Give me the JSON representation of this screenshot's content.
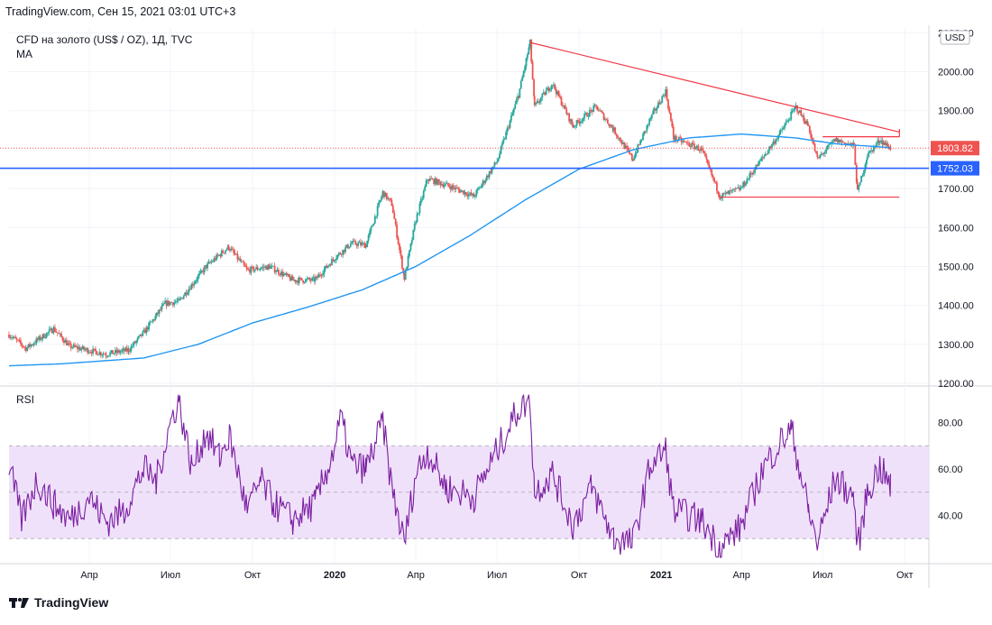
{
  "header": {
    "text": "TradingView.com, Сен 15, 2021 03:01 UTC+3"
  },
  "legend": {
    "symbol": "CFD на золото (US$ / OZ), 1Д, TVC",
    "indicator": "MA"
  },
  "rsi_label": "RSI",
  "footer": {
    "logo_icon": "tradingview-logo-icon",
    "brand": "TradingView"
  },
  "currency_badge": "USD",
  "colors": {
    "up": "#26a69a",
    "down": "#ef5350",
    "ma": "#2196f3",
    "support": "#2962ff",
    "trendline": "#f23645",
    "rsi": "#7b1fa2",
    "rsi_band": "#f0e1fa",
    "last_price_bg": "#ef5350",
    "level_bg": "#2962ff"
  },
  "chart_data": [
    {
      "type": "candlestick",
      "title": "CFD на золото (US$ / OZ), 1Д, TVC",
      "y_ticks": [
        "1200.00",
        "1300.00",
        "1400.00",
        "1500.00",
        "1600.00",
        "1700.00",
        "1800.00",
        "1900.00",
        "2000.00",
        "2100.00"
      ],
      "y_tick_values": [
        1200,
        1300,
        1400,
        1500,
        1600,
        1700,
        1800,
        1900,
        2000,
        2100
      ],
      "ylim": [
        1200,
        2110
      ],
      "x_ticks": [
        "Апр",
        "Июл",
        "Окт",
        "2020",
        "Апр",
        "Июл",
        "Окт",
        "2021",
        "Апр",
        "Июл",
        "Окт"
      ],
      "x_tick_dates": [
        "2019-04-01",
        "2019-07-01",
        "2019-10-01",
        "2020-01-01",
        "2020-04-01",
        "2020-07-01",
        "2020-10-01",
        "2021-01-01",
        "2021-04-01",
        "2021-07-01",
        "2021-10-01"
      ],
      "xlim": [
        "2019-01-01",
        "2021-10-28"
      ],
      "close_path": [
        [
          "2019-01-01",
          1325
        ],
        [
          "2019-01-20",
          1290
        ],
        [
          "2019-02-20",
          1340
        ],
        [
          "2019-03-10",
          1295
        ],
        [
          "2019-04-20",
          1275
        ],
        [
          "2019-05-15",
          1285
        ],
        [
          "2019-06-01",
          1330
        ],
        [
          "2019-06-25",
          1405
        ],
        [
          "2019-07-10",
          1410
        ],
        [
          "2019-08-10",
          1500
        ],
        [
          "2019-09-04",
          1550
        ],
        [
          "2019-09-25",
          1490
        ],
        [
          "2019-10-20",
          1500
        ],
        [
          "2019-11-15",
          1465
        ],
        [
          "2019-12-10",
          1465
        ],
        [
          "2019-12-31",
          1520
        ],
        [
          "2020-01-20",
          1560
        ],
        [
          "2020-02-05",
          1555
        ],
        [
          "2020-02-24",
          1690
        ],
        [
          "2020-03-05",
          1660
        ],
        [
          "2020-03-19",
          1470
        ],
        [
          "2020-04-01",
          1620
        ],
        [
          "2020-04-14",
          1725
        ],
        [
          "2020-05-10",
          1705
        ],
        [
          "2020-06-05",
          1680
        ],
        [
          "2020-07-01",
          1770
        ],
        [
          "2020-07-25",
          1940
        ],
        [
          "2020-08-07",
          2075
        ],
        [
          "2020-08-12",
          1910
        ],
        [
          "2020-09-01",
          1970
        ],
        [
          "2020-09-24",
          1860
        ],
        [
          "2020-10-20",
          1910
        ],
        [
          "2020-11-09",
          1850
        ],
        [
          "2020-11-30",
          1775
        ],
        [
          "2020-12-20",
          1880
        ],
        [
          "2021-01-06",
          1950
        ],
        [
          "2021-01-15",
          1830
        ],
        [
          "2021-02-15",
          1800
        ],
        [
          "2021-03-08",
          1680
        ],
        [
          "2021-03-31",
          1700
        ],
        [
          "2021-04-25",
          1780
        ],
        [
          "2021-05-15",
          1845
        ],
        [
          "2021-06-01",
          1910
        ],
        [
          "2021-06-15",
          1860
        ],
        [
          "2021-06-25",
          1775
        ],
        [
          "2021-07-15",
          1825
        ],
        [
          "2021-08-05",
          1810
        ],
        [
          "2021-08-09",
          1690
        ],
        [
          "2021-08-20",
          1785
        ],
        [
          "2021-09-03",
          1825
        ],
        [
          "2021-09-15",
          1803.82
        ]
      ],
      "ma_path": [
        [
          "2019-01-01",
          1245
        ],
        [
          "2019-03-01",
          1250
        ],
        [
          "2019-06-01",
          1265
        ],
        [
          "2019-08-01",
          1300
        ],
        [
          "2019-10-01",
          1355
        ],
        [
          "2019-12-01",
          1395
        ],
        [
          "2020-02-01",
          1440
        ],
        [
          "2020-04-01",
          1500
        ],
        [
          "2020-06-01",
          1580
        ],
        [
          "2020-08-01",
          1670
        ],
        [
          "2020-10-01",
          1750
        ],
        [
          "2020-12-01",
          1800
        ],
        [
          "2021-02-01",
          1830
        ],
        [
          "2021-04-01",
          1840
        ],
        [
          "2021-06-01",
          1830
        ],
        [
          "2021-07-15",
          1815
        ],
        [
          "2021-09-15",
          1805
        ]
      ],
      "trendline_top": [
        [
          "2020-08-07",
          2075
        ],
        [
          "2021-09-25",
          1845
        ]
      ],
      "channel_box": {
        "x0": "2021-03-08",
        "x1": "2021-09-25",
        "y_low": 1678,
        "y_mid": 1833
      },
      "support_level": 1752.03,
      "last_price": 1803.82,
      "last_price_label": "1803.82",
      "support_label": "1752.03"
    },
    {
      "type": "line",
      "title": "RSI",
      "y_ticks": [
        "40.00",
        "60.00",
        "80.00"
      ],
      "y_tick_values": [
        40,
        60,
        80
      ],
      "ylim": [
        20,
        95
      ],
      "band": [
        30,
        70
      ],
      "midline": 50,
      "series": [
        {
          "values": [
            [
              "2019-01-01",
              62
            ],
            [
              "2019-01-15",
              38
            ],
            [
              "2019-02-01",
              55
            ],
            [
              "2019-02-20",
              45
            ],
            [
              "2019-03-10",
              38
            ],
            [
              "2019-04-01",
              48
            ],
            [
              "2019-04-20",
              37
            ],
            [
              "2019-05-10",
              42
            ],
            [
              "2019-06-01",
              60
            ],
            [
              "2019-06-15",
              55
            ],
            [
              "2019-07-01",
              80
            ],
            [
              "2019-07-10",
              90
            ],
            [
              "2019-07-25",
              60
            ],
            [
              "2019-08-10",
              76
            ],
            [
              "2019-08-25",
              65
            ],
            [
              "2019-09-05",
              74
            ],
            [
              "2019-09-25",
              42
            ],
            [
              "2019-10-10",
              55
            ],
            [
              "2019-10-25",
              45
            ],
            [
              "2019-11-15",
              38
            ],
            [
              "2019-12-10",
              45
            ],
            [
              "2019-12-31",
              68
            ],
            [
              "2020-01-08",
              82
            ],
            [
              "2020-01-20",
              62
            ],
            [
              "2020-02-05",
              60
            ],
            [
              "2020-02-24",
              80
            ],
            [
              "2020-03-05",
              52
            ],
            [
              "2020-03-19",
              28
            ],
            [
              "2020-04-01",
              58
            ],
            [
              "2020-04-14",
              68
            ],
            [
              "2020-05-05",
              52
            ],
            [
              "2020-06-05",
              48
            ],
            [
              "2020-07-01",
              68
            ],
            [
              "2020-07-25",
              86
            ],
            [
              "2020-08-07",
              90
            ],
            [
              "2020-08-12",
              50
            ],
            [
              "2020-09-01",
              58
            ],
            [
              "2020-09-24",
              36
            ],
            [
              "2020-10-15",
              52
            ],
            [
              "2020-11-09",
              30
            ],
            [
              "2020-11-30",
              28
            ],
            [
              "2020-12-20",
              62
            ],
            [
              "2021-01-06",
              68
            ],
            [
              "2021-01-15",
              42
            ],
            [
              "2021-02-15",
              38
            ],
            [
              "2021-03-08",
              26
            ],
            [
              "2021-03-31",
              35
            ],
            [
              "2021-04-25",
              60
            ],
            [
              "2021-05-15",
              72
            ],
            [
              "2021-05-27",
              77
            ],
            [
              "2021-06-15",
              42
            ],
            [
              "2021-06-25",
              28
            ],
            [
              "2021-07-15",
              56
            ],
            [
              "2021-08-05",
              48
            ],
            [
              "2021-08-09",
              25
            ],
            [
              "2021-08-20",
              50
            ],
            [
              "2021-09-03",
              61
            ],
            [
              "2021-09-15",
              52
            ]
          ]
        }
      ]
    }
  ]
}
